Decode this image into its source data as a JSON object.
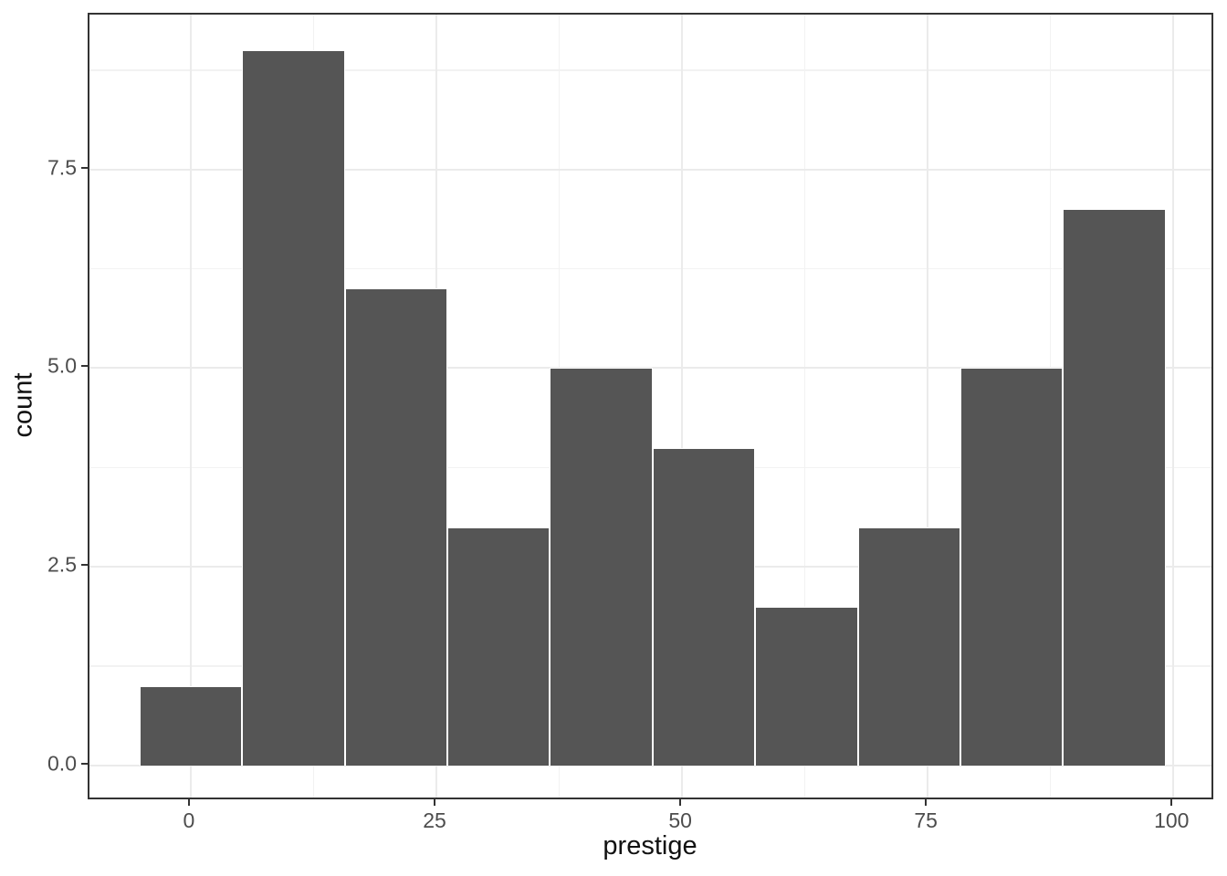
{
  "chart_data": {
    "type": "bar",
    "subtype": "histogram",
    "title": "",
    "xlabel": "prestige",
    "ylabel": "count",
    "bin_width": 10.4444,
    "bin_centers": [
      0,
      10.4444,
      20.8889,
      31.3333,
      41.7778,
      52.2222,
      62.6667,
      73.1111,
      83.5556,
      94.0
    ],
    "values": [
      1,
      9,
      6,
      3,
      5,
      4,
      2,
      3,
      5,
      7
    ],
    "x_domain": [
      -10.31,
      104.25
    ],
    "y_domain": [
      -0.45,
      9.45
    ],
    "x_tick_values": [
      0,
      25,
      50,
      75,
      100
    ],
    "x_tick_labels": [
      "0",
      "25",
      "50",
      "75",
      "100"
    ],
    "x_minor_ticks": [
      12.5,
      37.5,
      62.5,
      87.5
    ],
    "y_tick_values": [
      0,
      2.5,
      5.0,
      7.5
    ],
    "y_tick_labels": [
      "0.0",
      "2.5",
      "5.0",
      "7.5"
    ],
    "y_minor_ticks": [
      1.25,
      3.75,
      6.25,
      8.75
    ],
    "grid": "on",
    "legend": "none",
    "colors": {
      "bar_fill": "#555555",
      "bar_stroke": "#ffffff",
      "grid_major": "#EBEBEB",
      "grid_minor": "#F2F2F2",
      "panel_border": "#333333",
      "tick_mark": "#333333",
      "tick_label": "#4D4D4D",
      "axis_title": "#111111",
      "background": "#ffffff"
    }
  }
}
